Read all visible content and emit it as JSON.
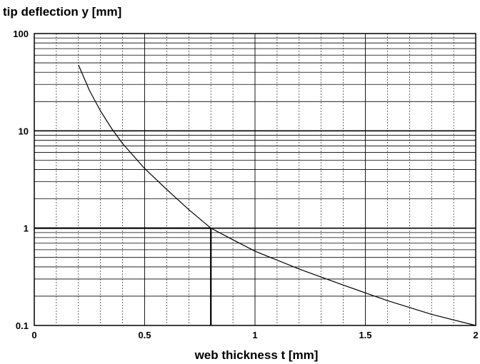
{
  "chart_data": {
    "type": "line",
    "title": "",
    "ylabel": "tip deflection y [mm]",
    "xlabel": "web thickness t [mm]",
    "xlim": [
      0,
      2
    ],
    "ylim": [
      0.1,
      100
    ],
    "yscale": "log",
    "grid": true,
    "x_ticks": [
      {
        "value": 0,
        "label": "0"
      },
      {
        "value": 0.5,
        "label": "0.5"
      },
      {
        "value": 1,
        "label": "1"
      },
      {
        "value": 1.5,
        "label": "1.5"
      },
      {
        "value": 2,
        "label": "2"
      }
    ],
    "y_ticks": [
      {
        "value": 0.1,
        "label": "0.1"
      },
      {
        "value": 1,
        "label": "1"
      },
      {
        "value": 10,
        "label": "10"
      },
      {
        "value": 100,
        "label": "100"
      }
    ],
    "series": [
      {
        "x": [
          0.2,
          0.25,
          0.3,
          0.35,
          0.4,
          0.5,
          0.6,
          0.7,
          0.8,
          0.9,
          1.0,
          1.2,
          1.4,
          1.6,
          1.8,
          2.0
        ],
        "y": [
          47.7,
          26.0,
          16.0,
          10.6,
          7.4,
          4.1,
          2.5,
          1.55,
          1.0,
          0.76,
          0.58,
          0.38,
          0.26,
          0.18,
          0.13,
          0.1
        ]
      }
    ],
    "annotations": [
      {
        "type": "marker-lines",
        "x": 0.8,
        "y": 1
      }
    ]
  }
}
